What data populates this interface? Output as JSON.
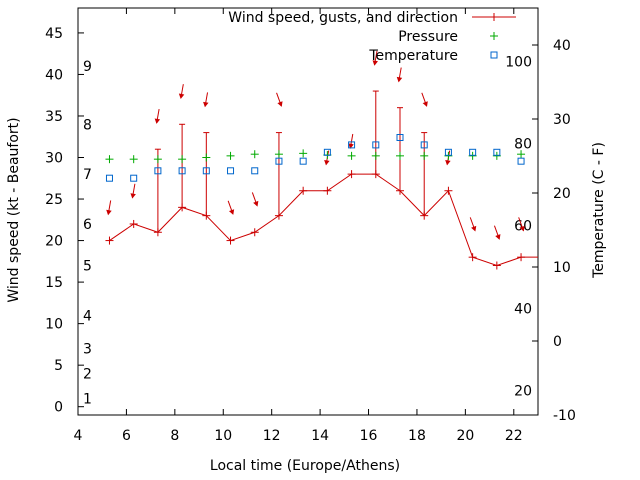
{
  "chart_data": {
    "type": "line",
    "xlabel": "Local time (Europe/Athens)",
    "ylabel_left": "Wind speed (kt - Beaufort)",
    "ylabel_right": "Temperature (C - F)",
    "xlim": [
      4,
      23
    ],
    "ylim_left": [
      -1,
      48
    ],
    "ylim_right": [
      -10,
      45
    ],
    "x_ticks": [
      "4",
      "6",
      "8",
      "10",
      "12",
      "14",
      "16",
      "18",
      "20",
      "22"
    ],
    "y_left_ticks": [
      "0",
      "5",
      "10",
      "15",
      "20",
      "25",
      "30",
      "35",
      "40",
      "45"
    ],
    "y_right_ticks": [
      "-10",
      "0",
      "10",
      "20",
      "30",
      "40"
    ],
    "beaufort_labels": [
      {
        "label": "1",
        "kt": 1
      },
      {
        "label": "2",
        "kt": 4
      },
      {
        "label": "3",
        "kt": 7
      },
      {
        "label": "4",
        "kt": 11
      },
      {
        "label": "5",
        "kt": 17
      },
      {
        "label": "6",
        "kt": 22
      },
      {
        "label": "7",
        "kt": 28
      },
      {
        "label": "8",
        "kt": 34
      },
      {
        "label": "9",
        "kt": 41
      }
    ],
    "fahrenheit_labels": [
      {
        "label": "20",
        "c": -6.7
      },
      {
        "label": "40",
        "c": 4.4
      },
      {
        "label": "60",
        "c": 15.6
      },
      {
        "label": "80",
        "c": 26.7
      },
      {
        "label": "100",
        "c": 37.8
      }
    ],
    "legend": [
      "Wind speed, gusts, and direction",
      "Pressure",
      "Temperature"
    ],
    "legend_position": "top-right",
    "colors": {
      "wind": "#cc0000",
      "pressure": "#00aa00",
      "temperature": "#0066cc",
      "axis": "#000000"
    },
    "series": [
      {
        "name": "Wind speed, gusts, and direction",
        "x": [
          5.3,
          6.3,
          7.3,
          8.3,
          9.3,
          10.3,
          11.3,
          12.3,
          13.3,
          14.3,
          15.3,
          16.3,
          17.3,
          18.3,
          19.3,
          20.3,
          21.3,
          22.3,
          23
        ],
        "y": [
          20,
          22,
          21,
          24,
          23,
          20,
          21,
          23,
          26,
          26,
          28,
          28,
          26,
          23,
          26,
          18,
          17,
          18,
          18
        ],
        "gusts": [
          null,
          null,
          31,
          34,
          33,
          null,
          null,
          33,
          null,
          null,
          null,
          38,
          36,
          33,
          null,
          null,
          null,
          null,
          null
        ]
      },
      {
        "name": "Pressure",
        "x": [
          5.3,
          6.3,
          7.3,
          8.3,
          9.3,
          10.3,
          11.3,
          12.3,
          13.3,
          14.3,
          15.3,
          16.3,
          17.3,
          18.3,
          19.3,
          20.3,
          21.3,
          22.3
        ],
        "y": [
          29.8,
          29.8,
          29.8,
          29.8,
          30,
          30.2,
          30.4,
          30.4,
          30.5,
          30.3,
          30.2,
          30.2,
          30.2,
          30.2,
          30.2,
          30.2,
          30.2,
          30.4
        ]
      },
      {
        "name": "Temperature",
        "x": [
          5.3,
          6.3,
          7.3,
          8.3,
          9.3,
          10.3,
          11.3,
          12.3,
          13.3,
          14.3,
          15.3,
          16.3,
          17.3,
          18.3,
          19.3,
          20.3,
          21.3,
          22.3
        ],
        "y": [
          22,
          22,
          23,
          23,
          23,
          23,
          23,
          24.3,
          24.3,
          25.5,
          26.5,
          26.5,
          27.5,
          26.5,
          25.5,
          25.5,
          25.5,
          24.3
        ]
      }
    ],
    "wind_arrows": {
      "x": [
        5.3,
        6.3,
        7.3,
        8.3,
        9.3,
        10.3,
        11.3,
        12.3,
        14.3,
        15.3,
        16.3,
        17.3,
        18.3,
        19.3,
        20.3,
        21.3,
        22.3
      ],
      "y_kt": [
        24,
        26,
        35,
        38,
        37,
        24,
        25,
        37,
        30,
        32,
        42,
        40,
        37,
        30,
        22,
        21,
        22
      ],
      "direction_deg": [
        10,
        10,
        10,
        10,
        10,
        340,
        340,
        340,
        10,
        10,
        10,
        10,
        340,
        10,
        340,
        340,
        340
      ]
    }
  }
}
